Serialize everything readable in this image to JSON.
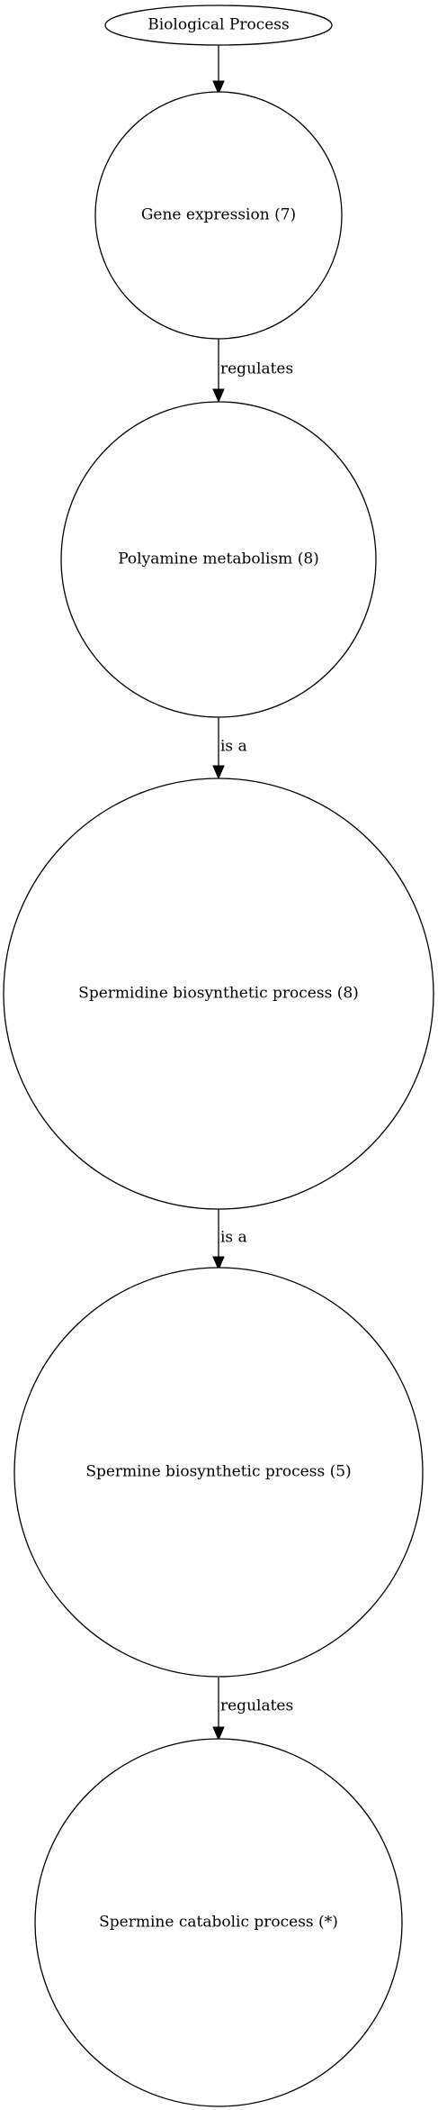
{
  "diagram": {
    "nodes": [
      {
        "id": "root",
        "label": "Biological Process",
        "shape": "ellipse"
      },
      {
        "id": "n1",
        "label": "Gene expression (7)",
        "shape": "circle"
      },
      {
        "id": "n2",
        "label": "Polyamine metabolism (8)",
        "shape": "circle"
      },
      {
        "id": "n3",
        "label": "Spermidine biosynthetic process (8)",
        "shape": "circle"
      },
      {
        "id": "n4",
        "label": "Spermine biosynthetic process (5)",
        "shape": "circle"
      },
      {
        "id": "n5",
        "label": "Spermine catabolic process (*)",
        "shape": "circle"
      }
    ],
    "edges": [
      {
        "from": "root",
        "to": "n1",
        "label": ""
      },
      {
        "from": "n1",
        "to": "n2",
        "label": "regulates"
      },
      {
        "from": "n2",
        "to": "n3",
        "label": "is a"
      },
      {
        "from": "n3",
        "to": "n4",
        "label": "is a"
      },
      {
        "from": "n4",
        "to": "n5",
        "label": "regulates"
      }
    ]
  }
}
